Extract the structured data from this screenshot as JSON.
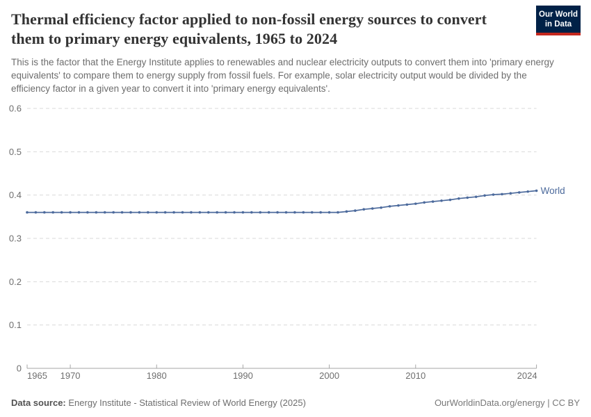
{
  "header": {
    "title": "Thermal efficiency factor applied to non-fossil energy sources to convert them to primary energy equivalents, 1965 to 2024",
    "subtitle": "This is the factor that the Energy Institute applies to renewables and nuclear electricity outputs to convert them into 'primary energy equivalents' to compare them to energy supply from fossil fuels. For example, solar electricity output would be divided by the efficiency factor in a given year to convert it into 'primary energy equivalents'."
  },
  "logo": {
    "line1": "Our World",
    "line2": "in Data",
    "bg_color": "#002147",
    "accent_color": "#C4281E"
  },
  "chart_data": {
    "type": "line",
    "title": "Thermal efficiency factor applied to non-fossil energy sources to convert them to primary energy equivalents",
    "xlabel": "",
    "ylabel": "",
    "xlim": [
      1965,
      2024
    ],
    "ylim": [
      0,
      0.6
    ],
    "xticks": [
      1965,
      1970,
      1980,
      1990,
      2000,
      2010,
      2024
    ],
    "yticks": [
      0,
      0.1,
      0.2,
      0.3,
      0.4,
      0.5,
      0.6
    ],
    "grid": "horizontal-dashed",
    "legend_position": "end-of-line",
    "colors": {
      "line": "#4C6A9C",
      "grid": "#DADADA",
      "axis": "#A6A6A6",
      "tick_text": "#6E6E6E"
    },
    "series": [
      {
        "name": "World",
        "color": "#4C6A9C",
        "x": [
          1965,
          1966,
          1967,
          1968,
          1969,
          1970,
          1971,
          1972,
          1973,
          1974,
          1975,
          1976,
          1977,
          1978,
          1979,
          1980,
          1981,
          1982,
          1983,
          1984,
          1985,
          1986,
          1987,
          1988,
          1989,
          1990,
          1991,
          1992,
          1993,
          1994,
          1995,
          1996,
          1997,
          1998,
          1999,
          2000,
          2001,
          2002,
          2003,
          2004,
          2005,
          2006,
          2007,
          2008,
          2009,
          2010,
          2011,
          2012,
          2013,
          2014,
          2015,
          2016,
          2017,
          2018,
          2019,
          2020,
          2021,
          2022,
          2023,
          2024
        ],
        "values": [
          0.36,
          0.36,
          0.36,
          0.36,
          0.36,
          0.36,
          0.36,
          0.36,
          0.36,
          0.36,
          0.36,
          0.36,
          0.36,
          0.36,
          0.36,
          0.36,
          0.36,
          0.36,
          0.36,
          0.36,
          0.36,
          0.36,
          0.36,
          0.36,
          0.36,
          0.36,
          0.36,
          0.36,
          0.36,
          0.36,
          0.36,
          0.36,
          0.36,
          0.36,
          0.36,
          0.36,
          0.36,
          0.362,
          0.364,
          0.367,
          0.369,
          0.371,
          0.374,
          0.376,
          0.378,
          0.38,
          0.383,
          0.385,
          0.387,
          0.389,
          0.392,
          0.394,
          0.396,
          0.399,
          0.401,
          0.402,
          0.404,
          0.406,
          0.408,
          0.41
        ]
      }
    ]
  },
  "footer": {
    "source_label": "Data source:",
    "source_text": "Energy Institute - Statistical Review of World Energy (2025)",
    "rights": "OurWorldinData.org/energy | CC BY"
  }
}
